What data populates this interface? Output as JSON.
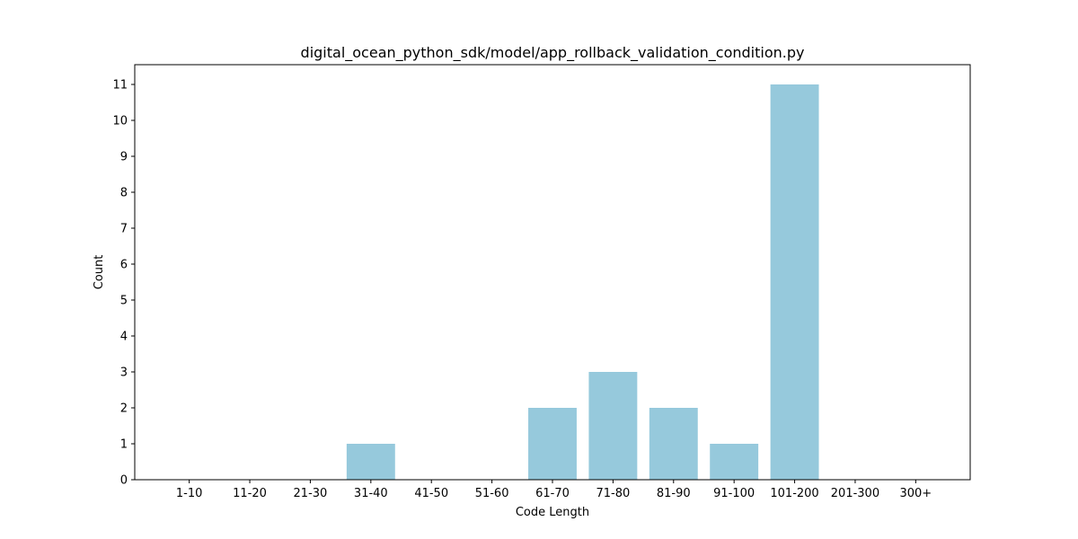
{
  "chart_data": {
    "type": "bar",
    "title": "digital_ocean_python_sdk/model/app_rollback_validation_condition.py",
    "xlabel": "Code Length",
    "ylabel": "Count",
    "categories": [
      "1-10",
      "11-20",
      "21-30",
      "31-40",
      "41-50",
      "51-60",
      "61-70",
      "71-80",
      "81-90",
      "91-100",
      "101-200",
      "201-300",
      "300+"
    ],
    "values": [
      0,
      0,
      0,
      1,
      0,
      0,
      2,
      3,
      2,
      1,
      11,
      0,
      0
    ],
    "yticks": [
      0,
      1,
      2,
      3,
      4,
      5,
      6,
      7,
      8,
      9,
      10,
      11
    ],
    "ylim": [
      0,
      11.55
    ],
    "grid": false,
    "bar_color": "#96c9dc"
  }
}
